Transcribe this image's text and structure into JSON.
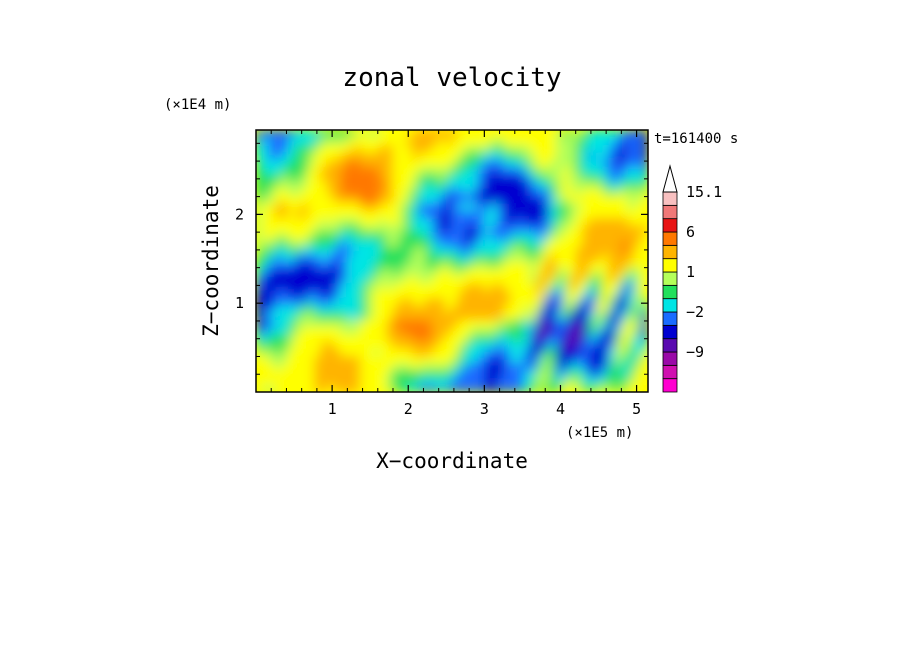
{
  "chart_data": {
    "type": "heatmap",
    "title": "zonal velocity",
    "xlabel": "X−coordinate",
    "ylabel": "Z−coordinate",
    "x_scale_label": "(×1E5 m)",
    "y_scale_label": "(×1E4 m)",
    "time_label": "t=161400 s",
    "xlim": [
      0,
      5.15
    ],
    "ylim": [
      0,
      2.95
    ],
    "x_ticks": [
      1,
      2,
      3,
      4,
      5
    ],
    "y_ticks": [
      1,
      2
    ],
    "colorbar": {
      "levels": [
        -13,
        -11,
        -9,
        -7,
        -5,
        -2,
        -1,
        0,
        1,
        2,
        4,
        6,
        8,
        12,
        15.1
      ],
      "colors": [
        "#ff00d0",
        "#d010b0",
        "#9a0aa8",
        "#5a0ab0",
        "#0000d0",
        "#1a6cff",
        "#00e5e5",
        "#22e05c",
        "#b4ff5a",
        "#ffff00",
        "#ffb400",
        "#ff7800",
        "#e81414",
        "#f07878",
        "#f8c0c0"
      ],
      "labels": [
        "15.1",
        "6",
        "1",
        "−2",
        "−9"
      ],
      "label_values": [
        15.1,
        6,
        1,
        -2,
        -9
      ]
    }
  }
}
